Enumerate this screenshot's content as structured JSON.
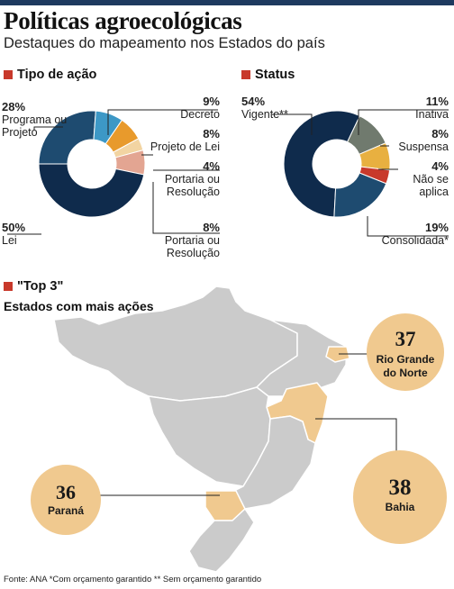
{
  "header": {
    "title": "Políticas agroecológicas",
    "subtitle": "Destaques do mapeamento nos Estados do país"
  },
  "colors": {
    "accent_red": "#c8392b",
    "navy": "#0f2b4c",
    "blue_mid": "#1e4b70",
    "light_blue": "#3d98c6",
    "orange": "#e89a2c",
    "cream": "#f2d4a2",
    "pink": "#e3a592",
    "gray": "#707a6e",
    "amber": "#e8b040",
    "red": "#c8392b",
    "map_gray": "#cbcbcb",
    "map_highlight": "#f0c98f"
  },
  "chart_data": [
    {
      "type": "pie",
      "title": "Tipo de ação",
      "slices": [
        {
          "pct": "50%",
          "value": 50,
          "label": "Lei",
          "color": "#0f2b4c"
        },
        {
          "pct": "28%",
          "value": 28,
          "label": "Programa ou Projeto",
          "color": "#1e4b70"
        },
        {
          "pct": "9%",
          "value": 9,
          "label": "Decreto",
          "color": "#3d98c6"
        },
        {
          "pct": "8%",
          "value": 8,
          "label": "Projeto de Lei",
          "color": "#e89a2c"
        },
        {
          "pct": "4%",
          "value": 4,
          "label": "Portaria ou Resolução",
          "color": "#f2d4a2"
        },
        {
          "pct": "8%",
          "value": 8,
          "label": "Portaria ou Resolução",
          "color": "#e3a592"
        }
      ]
    },
    {
      "type": "pie",
      "title": "Status",
      "slices": [
        {
          "pct": "54%",
          "value": 54,
          "label": "Vigente**",
          "color": "#0f2b4c"
        },
        {
          "pct": "11%",
          "value": 11,
          "label": "Inativa",
          "color": "#707a6e"
        },
        {
          "pct": "8%",
          "value": 8,
          "label": "Suspensa",
          "color": "#e8b040"
        },
        {
          "pct": "4%",
          "value": 4,
          "label": "Não se aplica",
          "color": "#c8392b"
        },
        {
          "pct": "19%",
          "value": 19,
          "label": "Consolidada*",
          "color": "#1e4b70"
        }
      ]
    }
  ],
  "top3": {
    "title": "\"Top 3\"",
    "subtitle": "Estados com mais ações",
    "states": [
      {
        "name": "Rio Grande do Norte",
        "value": "37"
      },
      {
        "name": "Bahia",
        "value": "38"
      },
      {
        "name": "Paraná",
        "value": "36"
      }
    ]
  },
  "footer": "Fonte: ANA  *Com orçamento garantido  ** Sem orçamento garantido"
}
